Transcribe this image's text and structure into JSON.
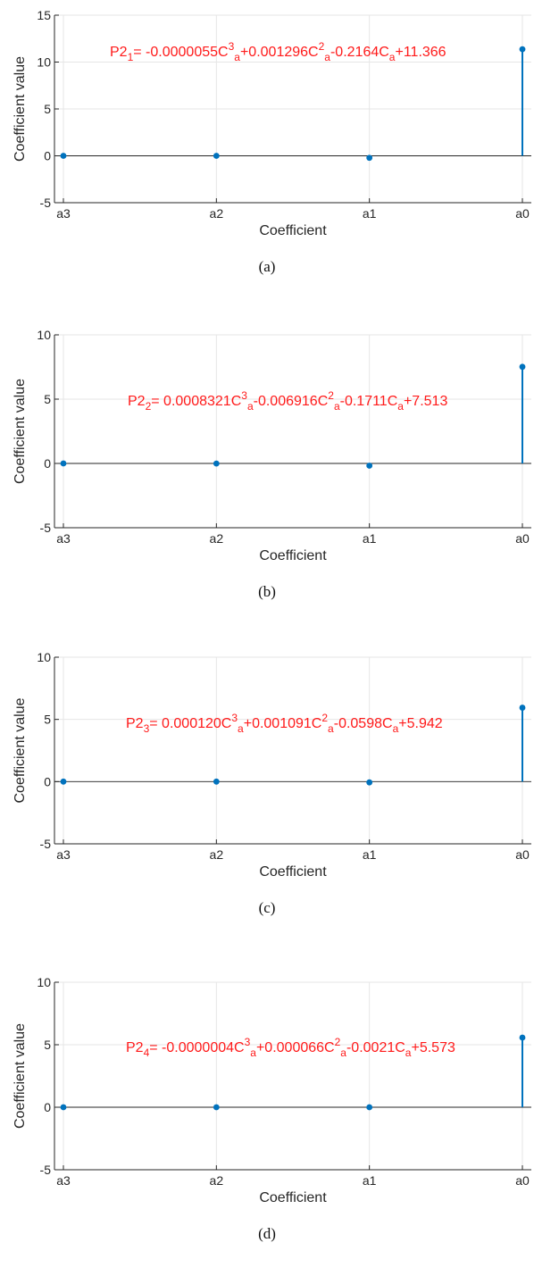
{
  "chart_data": [
    {
      "type": "stem",
      "panel": "(a)",
      "categories": [
        "a3",
        "a2",
        "a1",
        "a0"
      ],
      "values": [
        -5.5e-06,
        0.001296,
        -0.2164,
        11.366
      ],
      "xlabel": "Coefficient",
      "ylabel": "Coefficient value",
      "ylim": [
        -5,
        15
      ],
      "yticks": [
        "-5",
        "0",
        "5",
        "10",
        "15"
      ],
      "grid": true,
      "annotation": {
        "pre": "P2",
        "sub": "1",
        "parts": [
          {
            "t": "= -0.0000055C"
          },
          {
            "sup": "3"
          },
          {
            "sub": "a"
          },
          {
            "t": "+0.001296C"
          },
          {
            "sup": "2"
          },
          {
            "sub": "a"
          },
          {
            "t": "-0.2164C"
          },
          {
            "sub": "a"
          },
          {
            "t": "+11.366"
          }
        ]
      }
    },
    {
      "type": "stem",
      "panel": "(b)",
      "categories": [
        "a3",
        "a2",
        "a1",
        "a0"
      ],
      "values": [
        0.0008321,
        -0.006916,
        -0.1711,
        7.513
      ],
      "xlabel": "Coefficient",
      "ylabel": "Coefficient value",
      "ylim": [
        -5,
        10
      ],
      "yticks": [
        "-5",
        "0",
        "5",
        "10"
      ],
      "grid": true,
      "annotation": {
        "pre": "P2",
        "sub": "2",
        "parts": [
          {
            "t": "= 0.0008321C"
          },
          {
            "sup": "3"
          },
          {
            "sub": "a"
          },
          {
            "t": "-0.006916C"
          },
          {
            "sup": "2"
          },
          {
            "sub": "a"
          },
          {
            "t": "-0.1711C"
          },
          {
            "sub": "a"
          },
          {
            "t": "+7.513"
          }
        ]
      }
    },
    {
      "type": "stem",
      "panel": "(c)",
      "categories": [
        "a3",
        "a2",
        "a1",
        "a0"
      ],
      "values": [
        0.00012,
        0.001091,
        -0.0598,
        5.942
      ],
      "xlabel": "Coefficient",
      "ylabel": "Coefficient value",
      "ylim": [
        -5,
        10
      ],
      "yticks": [
        "-5",
        "0",
        "5",
        "10"
      ],
      "grid": true,
      "annotation": {
        "pre": "P2",
        "sub": "3",
        "parts": [
          {
            "t": "= 0.000120C"
          },
          {
            "sup": "3"
          },
          {
            "sub": "a"
          },
          {
            "t": "+0.001091C"
          },
          {
            "sup": "2"
          },
          {
            "sub": "a"
          },
          {
            "t": "-0.0598C"
          },
          {
            "sub": "a"
          },
          {
            "t": "+5.942"
          }
        ]
      }
    },
    {
      "type": "stem",
      "panel": "(d)",
      "categories": [
        "a3",
        "a2",
        "a1",
        "a0"
      ],
      "values": [
        -4e-07,
        6.6e-05,
        -0.0021,
        5.573
      ],
      "xlabel": "Coefficient",
      "ylabel": "Coefficient value",
      "ylim": [
        -5,
        10
      ],
      "yticks": [
        "-5",
        "0",
        "5",
        "10"
      ],
      "grid": true,
      "annotation": {
        "pre": "P2",
        "sub": "4",
        "parts": [
          {
            "t": "= -0.0000004C"
          },
          {
            "sup": "3"
          },
          {
            "sub": "a"
          },
          {
            "t": "+0.000066C"
          },
          {
            "sup": "2"
          },
          {
            "sub": "a"
          },
          {
            "t": "-0.0021C"
          },
          {
            "sub": "a"
          },
          {
            "t": "+5.573"
          }
        ]
      }
    }
  ],
  "colors": {
    "stem": "#0072bd",
    "equation": "#ff1a1a",
    "axis": "#262626",
    "grid": "#e6e6e6",
    "baseline": "#262626"
  }
}
